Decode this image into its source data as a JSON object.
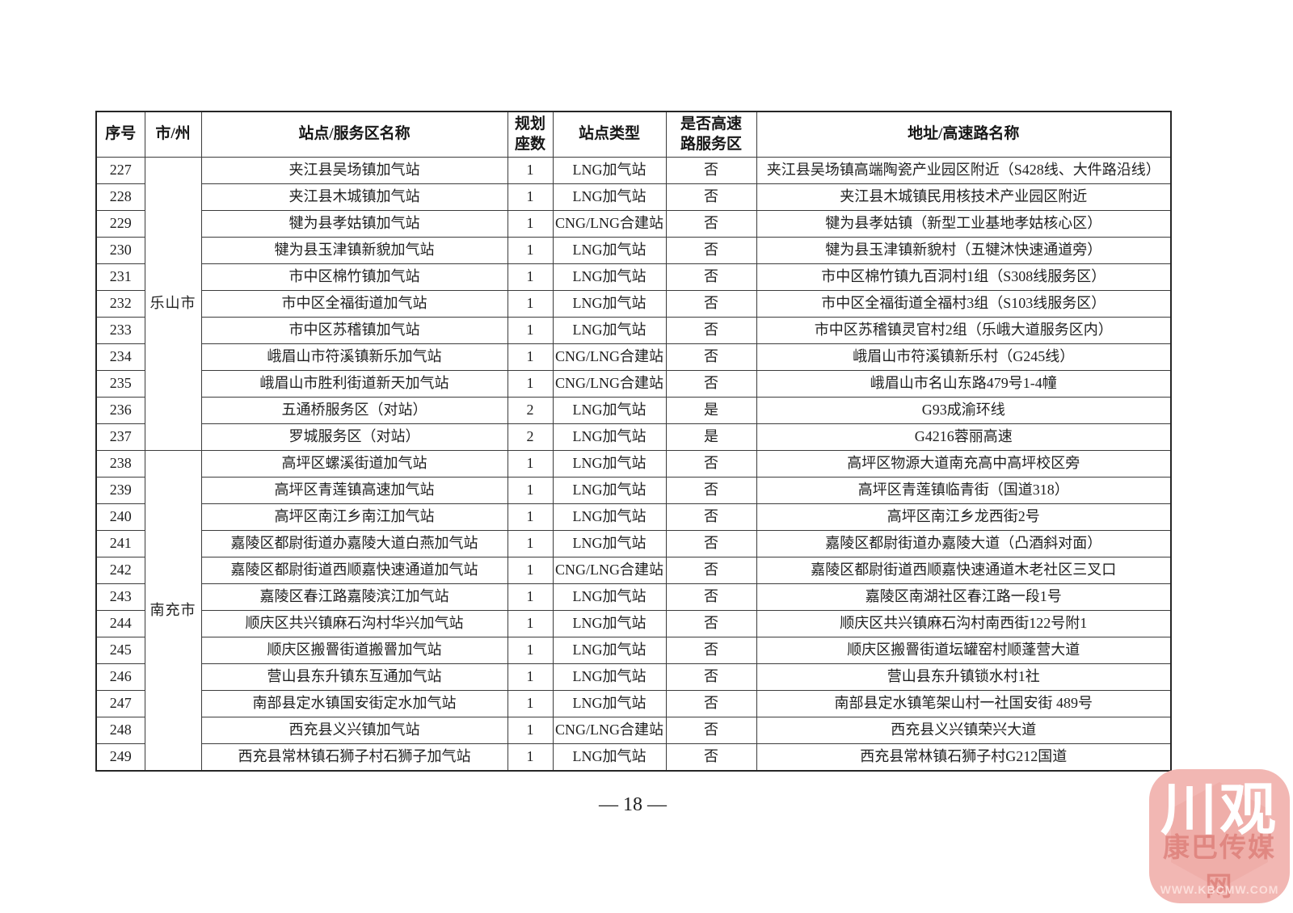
{
  "page": {
    "number_label": "— 18 —"
  },
  "table": {
    "headers": [
      "序号",
      "市/州",
      "站点/服务区名称",
      "规划\n座数",
      "站点类型",
      "是否高速\n路服务区",
      "地址/高速路名称"
    ],
    "groups": [
      {
        "city": "乐山市",
        "rows": [
          {
            "no": "227",
            "name": "夹江县吴场镇加气站",
            "seats": "1",
            "type": "LNG加气站",
            "highway": "否",
            "address": "夹江县吴场镇高端陶瓷产业园区附近（S428线、大件路沿线）"
          },
          {
            "no": "228",
            "name": "夹江县木城镇加气站",
            "seats": "1",
            "type": "LNG加气站",
            "highway": "否",
            "address": "夹江县木城镇民用核技术产业园区附近"
          },
          {
            "no": "229",
            "name": "犍为县孝姑镇加气站",
            "seats": "1",
            "type": "CNG/LNG合建站",
            "highway": "否",
            "address": "犍为县孝姑镇（新型工业基地孝姑核心区）"
          },
          {
            "no": "230",
            "name": "犍为县玉津镇新貌加气站",
            "seats": "1",
            "type": "LNG加气站",
            "highway": "否",
            "address": "犍为县玉津镇新貌村（五犍沐快速通道旁）"
          },
          {
            "no": "231",
            "name": "市中区棉竹镇加气站",
            "seats": "1",
            "type": "LNG加气站",
            "highway": "否",
            "address": "市中区棉竹镇九百洞村1组（S308线服务区）"
          },
          {
            "no": "232",
            "name": "市中区全福街道加气站",
            "seats": "1",
            "type": "LNG加气站",
            "highway": "否",
            "address": "市中区全福街道全福村3组（S103线服务区）"
          },
          {
            "no": "233",
            "name": "市中区苏稽镇加气站",
            "seats": "1",
            "type": "LNG加气站",
            "highway": "否",
            "address": "市中区苏稽镇灵官村2组（乐峨大道服务区内）"
          },
          {
            "no": "234",
            "name": "峨眉山市符溪镇新乐加气站",
            "seats": "1",
            "type": "CNG/LNG合建站",
            "highway": "否",
            "address": "峨眉山市符溪镇新乐村（G245线）"
          },
          {
            "no": "235",
            "name": "峨眉山市胜利街道新天加气站",
            "seats": "1",
            "type": "CNG/LNG合建站",
            "highway": "否",
            "address": "峨眉山市名山东路479号1-4幢"
          },
          {
            "no": "236",
            "name": "五通桥服务区（对站）",
            "seats": "2",
            "type": "LNG加气站",
            "highway": "是",
            "address": "G93成渝环线"
          },
          {
            "no": "237",
            "name": "罗城服务区（对站）",
            "seats": "2",
            "type": "LNG加气站",
            "highway": "是",
            "address": "G4216蓉丽高速"
          }
        ]
      },
      {
        "city": "南充市",
        "rows": [
          {
            "no": "238",
            "name": "高坪区螺溪街道加气站",
            "seats": "1",
            "type": "LNG加气站",
            "highway": "否",
            "address": "高坪区物源大道南充高中高坪校区旁"
          },
          {
            "no": "239",
            "name": "高坪区青莲镇高速加气站",
            "seats": "1",
            "type": "LNG加气站",
            "highway": "否",
            "address": "高坪区青莲镇临青街（国道318）"
          },
          {
            "no": "240",
            "name": "高坪区南江乡南江加气站",
            "seats": "1",
            "type": "LNG加气站",
            "highway": "否",
            "address": "高坪区南江乡龙西街2号"
          },
          {
            "no": "241",
            "name": "嘉陵区都尉街道办嘉陵大道白燕加气站",
            "seats": "1",
            "type": "LNG加气站",
            "highway": "否",
            "address": "嘉陵区都尉街道办嘉陵大道（凸酒斜对面）"
          },
          {
            "no": "242",
            "name": "嘉陵区都尉街道西顺嘉快速通道加气站",
            "seats": "1",
            "type": "CNG/LNG合建站",
            "highway": "否",
            "address": "嘉陵区都尉街道西顺嘉快速通道木老社区三叉口"
          },
          {
            "no": "243",
            "name": "嘉陵区春江路嘉陵滨江加气站",
            "seats": "1",
            "type": "LNG加气站",
            "highway": "否",
            "address": "嘉陵区南湖社区春江路一段1号"
          },
          {
            "no": "244",
            "name": "顺庆区共兴镇麻石沟村华兴加气站",
            "seats": "1",
            "type": "LNG加气站",
            "highway": "否",
            "address": "顺庆区共兴镇麻石沟村南西街122号附1"
          },
          {
            "no": "245",
            "name": "顺庆区搬罾街道搬罾加气站",
            "seats": "1",
            "type": "LNG加气站",
            "highway": "否",
            "address": "顺庆区搬罾街道坛罐窑村顺蓬营大道"
          },
          {
            "no": "246",
            "name": "营山县东升镇东互通加气站",
            "seats": "1",
            "type": "LNG加气站",
            "highway": "否",
            "address": "营山县东升镇锁水村1社"
          },
          {
            "no": "247",
            "name": "南部县定水镇国安街定水加气站",
            "seats": "1",
            "type": "LNG加气站",
            "highway": "否",
            "address": "南部县定水镇笔架山村一社国安街 489号"
          },
          {
            "no": "248",
            "name": "西充县义兴镇加气站",
            "seats": "1",
            "type": "CNG/LNG合建站",
            "highway": "否",
            "address": "西充县义兴镇荣兴大道"
          },
          {
            "no": "249",
            "name": "西充县常林镇石狮子村石狮子加气站",
            "seats": "1",
            "type": "LNG加气站",
            "highway": "否",
            "address": "西充县常林镇石狮子村G212国道"
          }
        ]
      }
    ]
  },
  "watermark": {
    "logo_text": "川观",
    "subtitle": "康巴传媒网",
    "url": "WWW.KBCMW.COM"
  }
}
